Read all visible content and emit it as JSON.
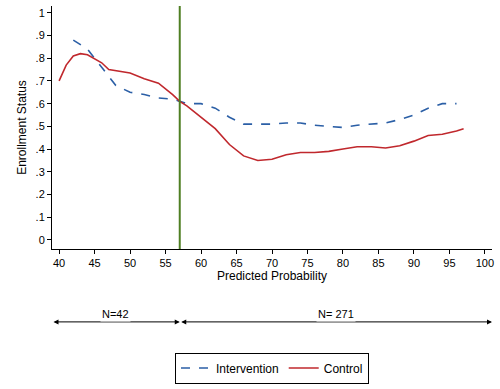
{
  "chart_data": {
    "type": "line",
    "x_label": "Predicted Probability",
    "y_label": "Enrollment Status",
    "xlim": [
      39,
      101
    ],
    "ylim": [
      -0.04,
      1.03
    ],
    "xticks": [
      40,
      45,
      50,
      55,
      60,
      65,
      70,
      75,
      80,
      85,
      90,
      95,
      100
    ],
    "yticks": [
      0,
      {
        "value": 0.1,
        "label": ".1"
      },
      {
        "value": 0.2,
        "label": ".2"
      },
      {
        "value": 0.3,
        "label": ".3"
      },
      {
        "value": 0.4,
        "label": ".4"
      },
      {
        "value": 0.5,
        "label": ".5"
      },
      {
        "value": 0.6,
        "label": ".6"
      },
      {
        "value": 0.7,
        "label": ".7"
      },
      {
        "value": 0.8,
        "label": ".8"
      },
      {
        "value": 0.9,
        "label": ".9"
      },
      1
    ],
    "grid": false,
    "legend": "bottom",
    "reference_line": {
      "x": 57,
      "color": "#4f7f23"
    },
    "annotations": [
      {
        "text": "N=42",
        "x": [
          39,
          57
        ]
      },
      {
        "text": "N= 271",
        "x": [
          57,
          101
        ]
      }
    ],
    "series": [
      {
        "name": "Intervention",
        "color": "#2b5fa6",
        "line_style": "dash",
        "x": [
          42,
          44,
          46,
          48,
          50,
          52,
          54,
          56,
          57,
          58,
          60,
          62,
          64,
          66,
          68,
          70,
          72,
          74,
          76,
          78,
          80,
          82,
          84,
          86,
          88,
          90,
          92,
          94,
          96
        ],
        "values": [
          0.88,
          0.84,
          0.76,
          0.68,
          0.65,
          0.64,
          0.625,
          0.62,
          0.61,
          0.6,
          0.6,
          0.58,
          0.54,
          0.51,
          0.51,
          0.51,
          0.515,
          0.515,
          0.505,
          0.5,
          0.495,
          0.505,
          0.51,
          0.515,
          0.53,
          0.55,
          0.58,
          0.6,
          0.6
        ]
      },
      {
        "name": "Control",
        "color": "#c0282d",
        "line_style": "solid",
        "x": [
          40,
          41,
          42,
          43,
          44,
          46,
          47,
          50,
          52,
          54,
          56,
          57,
          58,
          60,
          62,
          64,
          66,
          68,
          70,
          72,
          74,
          76,
          78,
          80,
          82,
          84,
          86,
          88,
          90,
          92,
          94,
          96,
          97
        ],
        "values": [
          0.7,
          0.77,
          0.81,
          0.82,
          0.815,
          0.78,
          0.75,
          0.735,
          0.71,
          0.69,
          0.64,
          0.61,
          0.59,
          0.54,
          0.49,
          0.42,
          0.37,
          0.35,
          0.355,
          0.375,
          0.385,
          0.385,
          0.39,
          0.4,
          0.41,
          0.41,
          0.405,
          0.415,
          0.435,
          0.46,
          0.465,
          0.48,
          0.49
        ]
      }
    ]
  }
}
